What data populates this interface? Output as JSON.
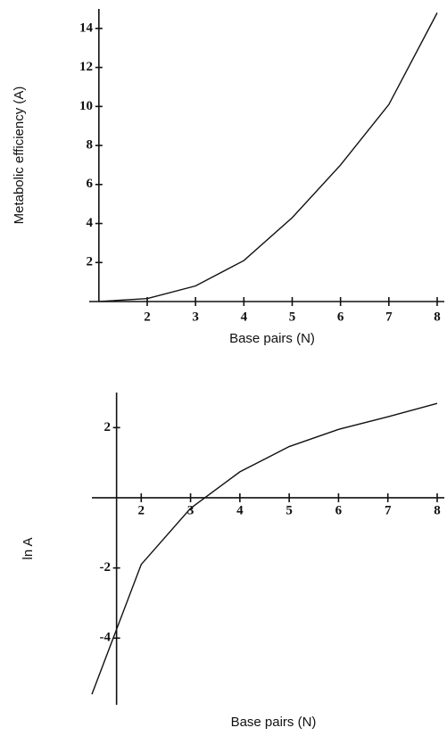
{
  "chart_data": [
    {
      "type": "line",
      "x_label": "Base pairs (N)",
      "y_label": "Metabolic efficiency (A)",
      "x": [
        1,
        2,
        3,
        4,
        5,
        6,
        7,
        8
      ],
      "values": [
        0.004,
        0.15,
        0.8,
        2.1,
        4.3,
        7.0,
        10.1,
        14.8
      ],
      "xlim": [
        0.8,
        8
      ],
      "ylim": [
        0,
        15
      ],
      "xticks": [
        2,
        3,
        4,
        5,
        6,
        7,
        8
      ],
      "yticks": [
        2,
        4,
        6,
        8,
        10,
        12,
        14
      ],
      "color": "#111111"
    },
    {
      "type": "line",
      "x_label": "Base pairs (N)",
      "y_label": "ln A",
      "x": [
        1,
        2,
        3,
        4,
        5,
        6,
        7,
        8
      ],
      "values": [
        -5.6,
        -1.9,
        -0.3,
        0.74,
        1.46,
        1.95,
        2.31,
        2.69
      ],
      "xlim": [
        1,
        8
      ],
      "ylim": [
        -5.9,
        3
      ],
      "xticks": [
        2,
        3,
        4,
        5,
        6,
        7,
        8
      ],
      "yticks": [
        -4,
        -2,
        2
      ],
      "color": "#111111"
    }
  ]
}
